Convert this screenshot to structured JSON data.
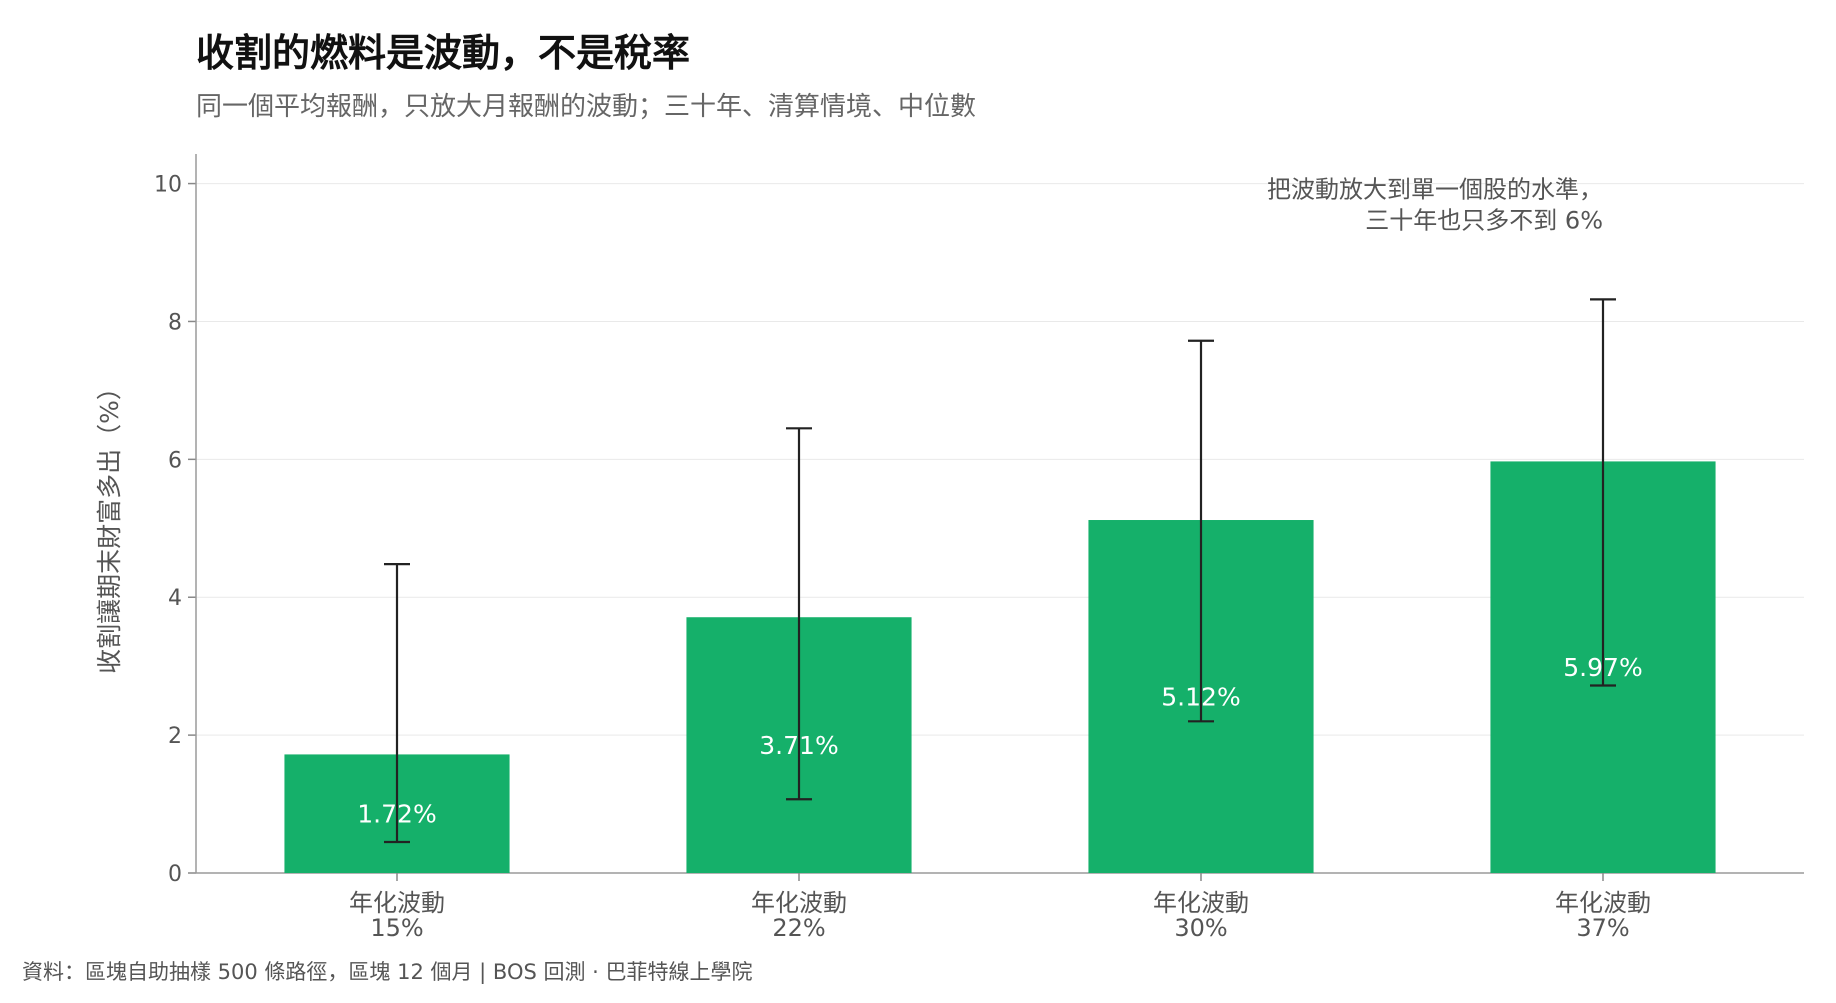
{
  "header": {
    "title": "收割的燃料是波動，不是稅率",
    "subtitle": "同一個平均報酬，只放大月報酬的波動；三十年、清算情境、中位數"
  },
  "footer": {
    "source": "資料：區塊自助抽樣 500 條路徑，區塊 12 個月 | BOS 回測 ·  巴菲特線上學院"
  },
  "chart_data": {
    "type": "bar",
    "categories": [
      [
        "年化波動",
        "15%"
      ],
      [
        "年化波動",
        "22%"
      ],
      [
        "年化波動",
        "30%"
      ],
      [
        "年化波動",
        "37%"
      ]
    ],
    "series": [
      {
        "values": [
          1.72,
          3.71,
          5.12,
          5.97
        ],
        "value_labels": [
          "1.72%",
          "3.71%",
          "5.12%",
          "5.97%"
        ],
        "error_low": [
          0.45,
          1.07,
          2.2,
          2.72
        ],
        "error_high": [
          4.48,
          6.45,
          7.72,
          8.32
        ]
      }
    ],
    "ylabel": "收割讓期末財富多出（%）",
    "xlabel": "",
    "ylim": [
      0,
      10.4
    ],
    "yticks": [
      0,
      2,
      4,
      6,
      8,
      10
    ],
    "grid": true,
    "bar_color": "#15b06a",
    "errorbar_color": "#222222",
    "annotation": {
      "lines": [
        "把波動放大到單一個股的水準，",
        "三十年也只多不到 6%"
      ],
      "x_category_index": 3,
      "y": 9.8
    }
  }
}
